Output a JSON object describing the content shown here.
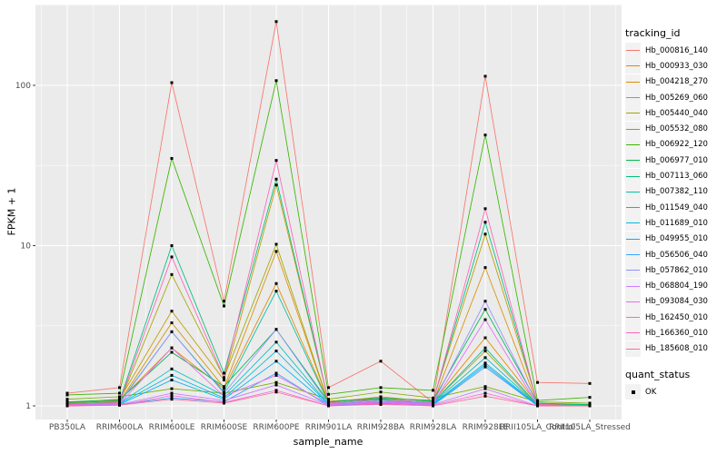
{
  "figure": {
    "background": "#FFFFFF",
    "panel_background": "#EBEBEB",
    "gridline_color": "#FFFFFF",
    "tick_label_color": "#4D4D4D"
  },
  "legend": {
    "tracking_title": "tracking_id",
    "quant_title": "quant_status",
    "quant_value": "OK",
    "quant_glyph": "black-square-point"
  },
  "chart_data": {
    "type": "line",
    "title": "",
    "xlabel": "sample_name",
    "ylabel": "FPKM + 1",
    "x_type": "categorical",
    "y_scale": "log10",
    "y_ticks": [
      1,
      10,
      100
    ],
    "y_tick_labels": [
      "1",
      "10",
      "100"
    ],
    "ylim": [
      0.9,
      320
    ],
    "grid": true,
    "legend_position": "right",
    "point_color": "#000000",
    "point_shape": "square",
    "categories": [
      "PB350LA",
      "RRIM600LA",
      "RRIM600LE",
      "RRIM600SE",
      "RRIM600PE",
      "RRIM901LA",
      "RRIM928BA",
      "RRIM928LA",
      "RRIM928LE",
      "RRII105LA_Control",
      "RRII105LA_Stressed"
    ],
    "series": [
      {
        "name": "Hb_000816_140",
        "color": "#F8766D",
        "values": [
          1.2,
          1.3,
          104,
          4.5,
          250,
          1.3,
          1.9,
          1.05,
          114,
          1.4,
          1.38
        ]
      },
      {
        "name": "Hb_000933_030",
        "color": "#E58700",
        "values": [
          1.04,
          1.08,
          2.3,
          1.28,
          5.8,
          1.05,
          1.14,
          1.06,
          2.66,
          1.03,
          1.01
        ]
      },
      {
        "name": "Hb_004218_270",
        "color": "#D89000",
        "values": [
          1.03,
          1.06,
          3.3,
          1.3,
          9.2,
          1.04,
          1.1,
          1.05,
          7.3,
          1.02,
          1.0
        ]
      },
      {
        "name": "Hb_005269_060",
        "color": "#C09B00",
        "values": [
          1.05,
          1.1,
          3.9,
          1.45,
          23.9,
          1.07,
          1.12,
          1.08,
          11.8,
          1.04,
          1.01
        ]
      },
      {
        "name": "Hb_005440_040",
        "color": "#A3A500",
        "values": [
          1.02,
          1.05,
          6.6,
          1.5,
          10.2,
          1.04,
          1.09,
          1.05,
          2.2,
          1.01,
          1.0
        ]
      },
      {
        "name": "Hb_005532_080",
        "color": "#7CAE00",
        "values": [
          1.1,
          1.14,
          1.28,
          1.2,
          1.4,
          1.1,
          1.22,
          1.12,
          1.32,
          1.06,
          1.04
        ]
      },
      {
        "name": "Hb_006922_120",
        "color": "#39B600",
        "values": [
          1.17,
          1.2,
          35.0,
          4.2,
          107,
          1.18,
          1.3,
          1.25,
          49.0,
          1.08,
          1.13
        ]
      },
      {
        "name": "Hb_006977_010",
        "color": "#00BB4E",
        "values": [
          1.06,
          1.09,
          2.16,
          1.32,
          3.0,
          1.06,
          1.11,
          1.08,
          4.0,
          1.04,
          1.02
        ]
      },
      {
        "name": "Hb_007113_060",
        "color": "#00BF7D",
        "values": [
          1.05,
          1.07,
          10.0,
          1.6,
          26.0,
          1.06,
          1.12,
          1.07,
          14.0,
          1.04,
          1.01
        ]
      },
      {
        "name": "Hb_007382_110",
        "color": "#00C1A3",
        "values": [
          1.03,
          1.05,
          2.9,
          1.22,
          5.2,
          1.04,
          1.09,
          1.05,
          2.3,
          1.02,
          1.0
        ]
      },
      {
        "name": "Hb_011549_040",
        "color": "#00BFC4",
        "values": [
          1.02,
          1.04,
          1.7,
          1.16,
          2.5,
          1.02,
          1.07,
          1.04,
          2.0,
          1.01,
          1.0
        ]
      },
      {
        "name": "Hb_011689_010",
        "color": "#00BAE0",
        "values": [
          1.01,
          1.03,
          1.55,
          1.12,
          2.2,
          1.02,
          1.06,
          1.03,
          1.85,
          1.01,
          1.0
        ]
      },
      {
        "name": "Hb_049955_010",
        "color": "#00B0F6",
        "values": [
          1.0,
          1.02,
          1.45,
          1.1,
          1.9,
          1.01,
          1.05,
          1.02,
          1.8,
          1.0,
          1.0
        ]
      },
      {
        "name": "Hb_056506_040",
        "color": "#35A2FF",
        "values": [
          1.0,
          1.02,
          1.12,
          1.06,
          1.6,
          1.0,
          1.04,
          1.01,
          1.75,
          1.0,
          1.0
        ]
      },
      {
        "name": "Hb_057862_010",
        "color": "#9590FF",
        "values": [
          1.02,
          1.04,
          2.9,
          1.2,
          3.0,
          1.03,
          1.07,
          1.04,
          4.5,
          1.02,
          1.0
        ]
      },
      {
        "name": "Hb_068804_190",
        "color": "#C77CFF",
        "values": [
          1.0,
          1.02,
          1.2,
          1.08,
          1.35,
          1.01,
          1.05,
          1.02,
          1.28,
          1.0,
          1.0
        ]
      },
      {
        "name": "Hb_093084_030",
        "color": "#E76BF3",
        "values": [
          1.01,
          1.03,
          2.3,
          1.15,
          1.55,
          1.02,
          1.06,
          1.03,
          3.45,
          1.01,
          1.0
        ]
      },
      {
        "name": "Hb_162450_010",
        "color": "#FA62DB",
        "values": [
          1.0,
          1.01,
          1.16,
          1.05,
          1.25,
          1.0,
          1.03,
          1.01,
          1.2,
          1.0,
          1.0
        ]
      },
      {
        "name": "Hb_166360_010",
        "color": "#FF62BC",
        "values": [
          1.02,
          1.05,
          8.5,
          1.5,
          34.0,
          1.04,
          1.1,
          1.05,
          17.0,
          1.02,
          1.0
        ]
      },
      {
        "name": "Hb_185608_010",
        "color": "#FF6A98",
        "values": [
          1.0,
          1.01,
          1.1,
          1.04,
          1.22,
          1.0,
          1.02,
          1.0,
          1.15,
          1.0,
          1.0
        ]
      }
    ]
  }
}
